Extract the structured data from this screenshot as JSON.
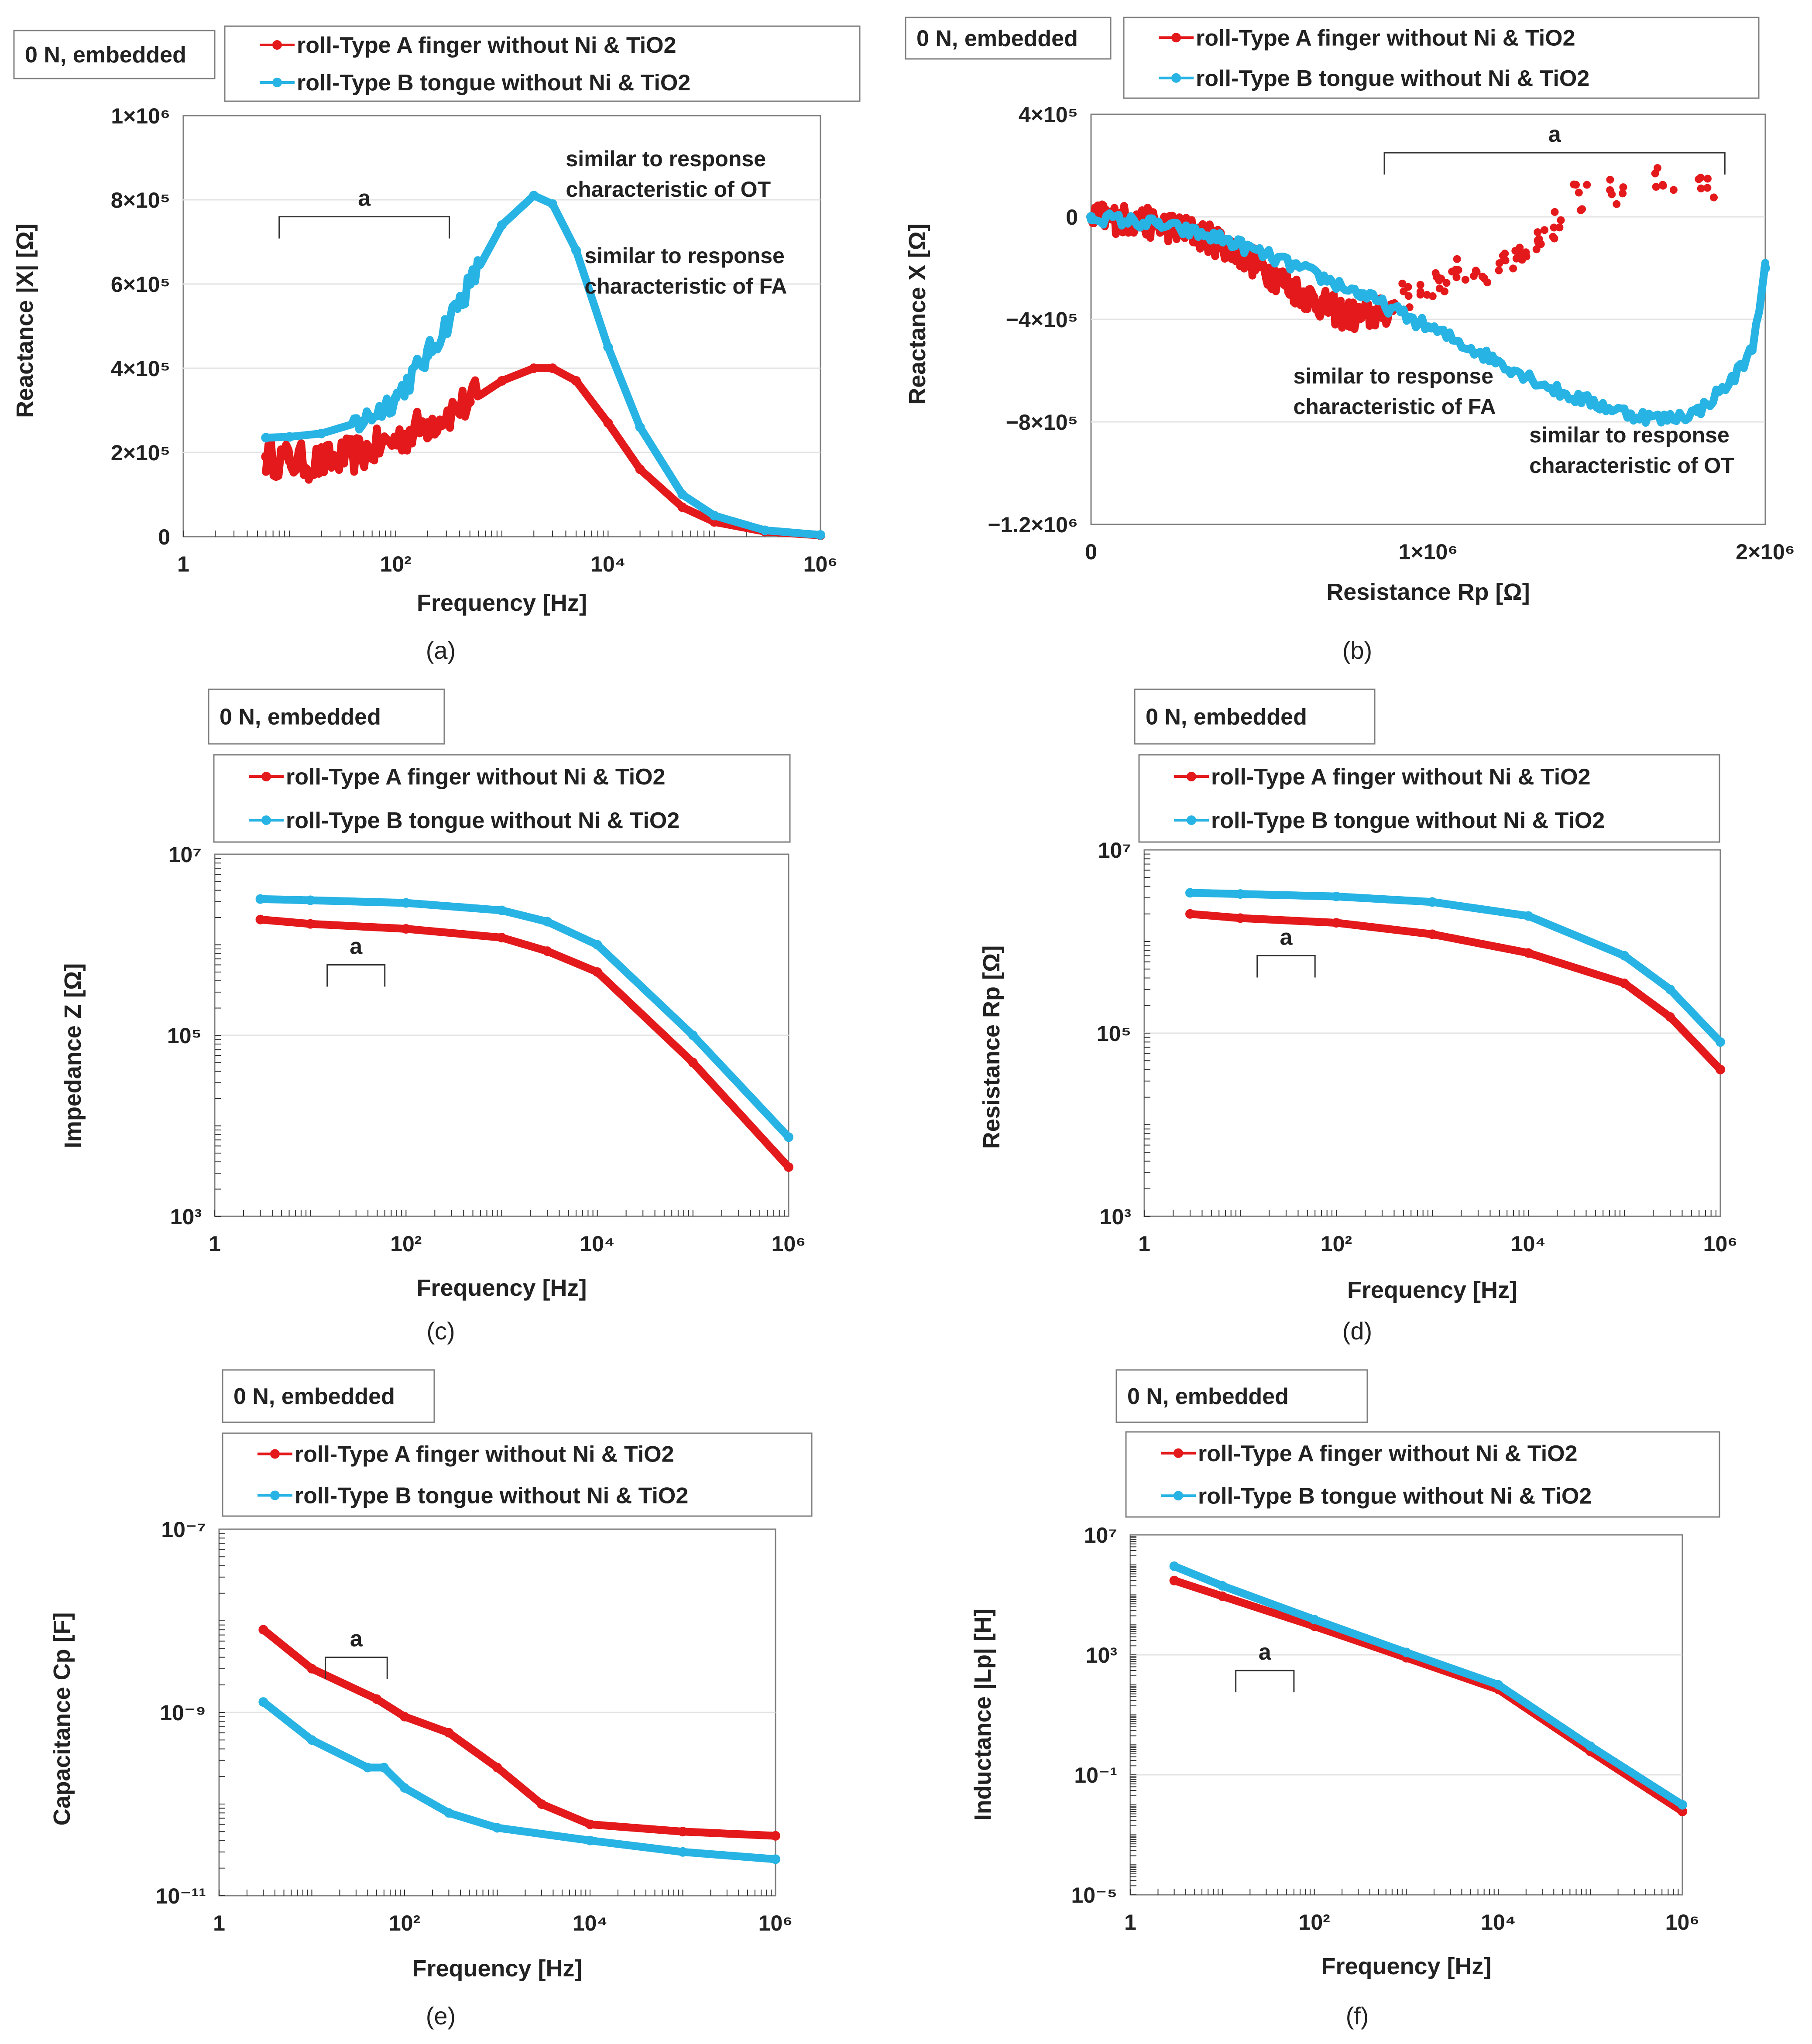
{
  "colors": {
    "type_a": "#e4191b",
    "type_b": "#27b3e3",
    "axis": "#7f7f7f",
    "grid": "#e3e3e3",
    "text": "#222222"
  },
  "legend": {
    "condition": "0 N, embedded",
    "series_a": "roll-Type A finger without Ni & TiO2",
    "series_b": "roll-Type B tongue without Ni & TiO2"
  },
  "chart_data": [
    {
      "panel": "a",
      "caption": "(a)",
      "type": "line",
      "xscale": "log",
      "yscale": "linear",
      "xlabel": "Frequency  [Hz]",
      "ylabel": "Reactance  |X|  [Ω]",
      "xlim": [
        1,
        1000000
      ],
      "ylim": [
        0,
        1000000
      ],
      "x_ticks": [
        "1",
        "10²",
        "10⁴",
        "10⁶"
      ],
      "y_ticks": [
        "0",
        "2×10⁵",
        "4×10⁵",
        "6×10⁵",
        "8×10⁵",
        "1×10⁶"
      ],
      "annotations": [
        {
          "text": "a",
          "x_range": [
            8,
            320
          ],
          "y": 760000
        },
        {
          "text": "similar to response characteristic of OT",
          "x": 4000,
          "y": 880000
        },
        {
          "text": "similar to response characteristic of FA",
          "x": 6000,
          "y": 650000
        }
      ],
      "series": [
        {
          "name": "roll-Type A finger without Ni & TiO2",
          "x": [
            6,
            10,
            20,
            50,
            100,
            200,
            500,
            1000,
            2000,
            3000,
            5000,
            10000,
            20000,
            50000,
            100000,
            300000,
            1000000
          ],
          "y": [
            190000,
            180000,
            175000,
            200000,
            230000,
            270000,
            320000,
            370000,
            400000,
            400000,
            370000,
            270000,
            160000,
            70000,
            35000,
            12000,
            3000
          ],
          "noise": 45000,
          "noise_x": [
            4,
            600
          ]
        },
        {
          "name": "roll-Type B tongue without Ni & TiO2",
          "x": [
            6,
            10,
            20,
            50,
            100,
            200,
            500,
            1000,
            2000,
            3000,
            5000,
            10000,
            20000,
            50000,
            100000,
            300000,
            1000000
          ],
          "y": [
            235000,
            237000,
            245000,
            275000,
            330000,
            430000,
            600000,
            740000,
            810000,
            790000,
            680000,
            450000,
            260000,
            100000,
            50000,
            15000,
            4000
          ],
          "noise": 30000,
          "noise_x": [
            40,
            600
          ]
        }
      ]
    },
    {
      "panel": "b",
      "caption": "(b)",
      "type": "scatter",
      "xscale": "linear",
      "yscale": "linear",
      "xlabel": "Resistance  Rp  [Ω]",
      "ylabel": "Reactance  X  [Ω]",
      "xlim": [
        0,
        2000000
      ],
      "ylim": [
        -1200000,
        400000
      ],
      "x_ticks": [
        "0",
        "1×10⁶",
        "2×10⁶"
      ],
      "y_ticks": [
        "4×10⁵",
        "0",
        "−4×10⁵",
        "−8×10⁵",
        "−1.2×10⁶"
      ],
      "annotations": [
        {
          "text": "a",
          "x_range": [
            870000,
            1880000
          ],
          "y": 250000
        },
        {
          "text": "similar to response characteristic of FA",
          "x": 600000,
          "y": -650000
        },
        {
          "text": "similar to response characteristic of OT",
          "x": 1300000,
          "y": -880000
        }
      ],
      "series": [
        {
          "name": "roll-Type A finger without Ni & TiO2",
          "x": [
            0,
            100000,
            200000,
            300000,
            400000,
            500000,
            600000,
            700000,
            750000,
            800000,
            850000,
            900000
          ],
          "y": [
            0,
            -10000,
            -30000,
            -60000,
            -110000,
            -190000,
            -280000,
            -350000,
            -380000,
            -390000,
            -380000,
            -350000
          ],
          "scatter_points": [
            [
              950000,
              -300000
            ],
            [
              1000000,
              -280000
            ],
            [
              1050000,
              -250000
            ],
            [
              1100000,
              -220000
            ],
            [
              1150000,
              -200000
            ],
            [
              1200000,
              -180000
            ],
            [
              1250000,
              -150000
            ],
            [
              1300000,
              -120000
            ],
            [
              1350000,
              -90000
            ],
            [
              1400000,
              -30000
            ],
            [
              1450000,
              70000
            ],
            [
              1550000,
              90000
            ],
            [
              1700000,
              140000
            ],
            [
              1820000,
              110000
            ]
          ],
          "noise": 60000
        },
        {
          "name": "roll-Type B tongue without Ni & TiO2",
          "x": [
            0,
            200000,
            400000,
            600000,
            800000,
            1000000,
            1200000,
            1400000,
            1600000,
            1700000,
            1800000,
            1900000,
            1960000,
            2000000
          ],
          "y": [
            0,
            -30000,
            -90000,
            -190000,
            -300000,
            -430000,
            -560000,
            -690000,
            -770000,
            -790000,
            -760000,
            -640000,
            -520000,
            -200000
          ],
          "noise": 25000
        }
      ]
    },
    {
      "panel": "c",
      "caption": "(c)",
      "type": "line",
      "xscale": "log",
      "yscale": "log",
      "xlabel": "Frequency  [Hz]",
      "ylabel": "Impedance  Z  [Ω]",
      "xlim": [
        1,
        1000000
      ],
      "ylim": [
        1000,
        10000000
      ],
      "x_ticks": [
        "1",
        "10²",
        "10⁴",
        "10⁶"
      ],
      "y_ticks": [
        "10⁷",
        "10⁵",
        "10³"
      ],
      "annotations": [
        {
          "text": "a",
          "x_range": [
            15,
            60
          ],
          "y": 600000
        }
      ],
      "series": [
        {
          "name": "roll-Type A finger without Ni & TiO2",
          "x": [
            3,
            10,
            100,
            1000,
            3000,
            10000,
            100000,
            1000000
          ],
          "y": [
            1900000,
            1700000,
            1500000,
            1200000,
            850000,
            500000,
            50000,
            3500
          ]
        },
        {
          "name": "roll-Type B tongue without Ni & TiO2",
          "x": [
            3,
            10,
            100,
            1000,
            3000,
            10000,
            100000,
            1000000
          ],
          "y": [
            3200000,
            3100000,
            2900000,
            2400000,
            1800000,
            1000000,
            100000,
            7500
          ]
        }
      ]
    },
    {
      "panel": "d",
      "caption": "(d)",
      "type": "line",
      "xscale": "log",
      "yscale": "log",
      "xlabel": "Frequency  [Hz]",
      "ylabel": "Resistance  Rp  [Ω]",
      "xlim": [
        1,
        1000000
      ],
      "ylim": [
        1000,
        10000000
      ],
      "x_ticks": [
        "1",
        "10²",
        "10⁴",
        "10⁶"
      ],
      "y_ticks": [
        "10⁷",
        "10⁵",
        "10³"
      ],
      "annotations": [
        {
          "text": "a",
          "x_range": [
            15,
            60
          ],
          "y": 700000
        }
      ],
      "series": [
        {
          "name": "roll-Type A finger without Ni & TiO2",
          "x": [
            3,
            10,
            100,
            1000,
            10000,
            100000,
            300000,
            1000000
          ],
          "y": [
            2000000,
            1800000,
            1600000,
            1200000,
            750000,
            350000,
            150000,
            40000
          ]
        },
        {
          "name": "roll-Type B tongue without Ni & TiO2",
          "x": [
            3,
            10,
            100,
            1000,
            10000,
            100000,
            300000,
            1000000
          ],
          "y": [
            3400000,
            3300000,
            3100000,
            2700000,
            1900000,
            700000,
            300000,
            80000
          ]
        }
      ]
    },
    {
      "panel": "e",
      "caption": "(e)",
      "type": "line",
      "xscale": "log",
      "yscale": "log",
      "xlabel": "Frequency  [Hz]",
      "ylabel": "Capacitance  Cp  [F]",
      "xlim": [
        1,
        1000000
      ],
      "ylim": [
        1e-11,
        1e-07
      ],
      "x_ticks": [
        "1",
        "10²",
        "10⁴",
        "10⁶"
      ],
      "y_ticks": [
        "10⁻⁷",
        "10⁻⁹",
        "10⁻¹¹"
      ],
      "annotations": [
        {
          "text": "a",
          "x_range": [
            14,
            65
          ],
          "y": 4e-09
        }
      ],
      "series": [
        {
          "name": "roll-Type A finger without Ni & TiO2",
          "x": [
            3,
            10,
            50,
            100,
            300,
            1000,
            3000,
            10000,
            100000,
            1000000
          ],
          "y": [
            8e-09,
            3e-09,
            1.4e-09,
            9e-10,
            6e-10,
            2.5e-10,
            1e-10,
            6e-11,
            5e-11,
            4.5e-11
          ]
        },
        {
          "name": "roll-Type B tongue without Ni & TiO2",
          "x": [
            3,
            10,
            40,
            60,
            100,
            300,
            1000,
            10000,
            100000,
            1000000
          ],
          "y": [
            1.3e-09,
            5e-10,
            2.5e-10,
            2.5e-10,
            1.5e-10,
            8e-11,
            5.5e-11,
            4e-11,
            3e-11,
            2.5e-11
          ]
        }
      ]
    },
    {
      "panel": "f",
      "caption": "(f)",
      "type": "line",
      "xscale": "log",
      "yscale": "log",
      "xlabel": "Frequency  [Hz]",
      "ylabel": "Inductance  |Lp|  [H]",
      "xlim": [
        1,
        1000000
      ],
      "ylim": [
        1e-05,
        10000000
      ],
      "x_ticks": [
        "1",
        "10²",
        "10⁴",
        "10⁶"
      ],
      "y_ticks": [
        "10⁷",
        "10³",
        "10⁻¹",
        "10⁻⁵"
      ],
      "annotations": [
        {
          "text": "a",
          "x_range": [
            14,
            60
          ],
          "y": 300
        }
      ],
      "series": [
        {
          "name": "roll-Type A finger without Ni & TiO2",
          "x": [
            3,
            10,
            100,
            1000,
            10000,
            100000,
            1000000
          ],
          "y": [
            300000,
            90000,
            9000,
            800,
            70,
            0.6,
            0.006
          ]
        },
        {
          "name": "roll-Type B tongue without Ni & TiO2",
          "x": [
            3,
            10,
            100,
            1000,
            10000,
            100000,
            1000000
          ],
          "y": [
            900000,
            200000,
            15000,
            1200,
            100,
            0.9,
            0.01
          ]
        }
      ]
    }
  ]
}
